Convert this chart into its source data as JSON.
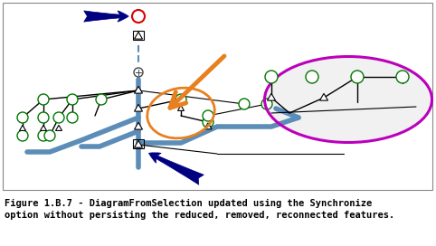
{
  "title_line1": "Figure 1.B.7 - DiagramFromSelection updated using the Synchronize",
  "title_line2": "option without persisting the reduced, removed, reconnected features.",
  "bg_color": "#ffffff",
  "border_color": "#888888",
  "node_edge_color": "#007700",
  "node_face_color": "#ffffff",
  "tri_edge_color": "#000000",
  "tri_face_color": "#ffffff",
  "blue_color": "#5b8db8",
  "blue_lw": 4,
  "thin_color": "#000000",
  "dash_color": "#5b8db8",
  "navy_color": "#000080",
  "orange_color": "#e88020",
  "magenta_color": "#bb00bb",
  "red_color": "#dd0000",
  "font_size": 7.5,
  "text_color": "#000000"
}
